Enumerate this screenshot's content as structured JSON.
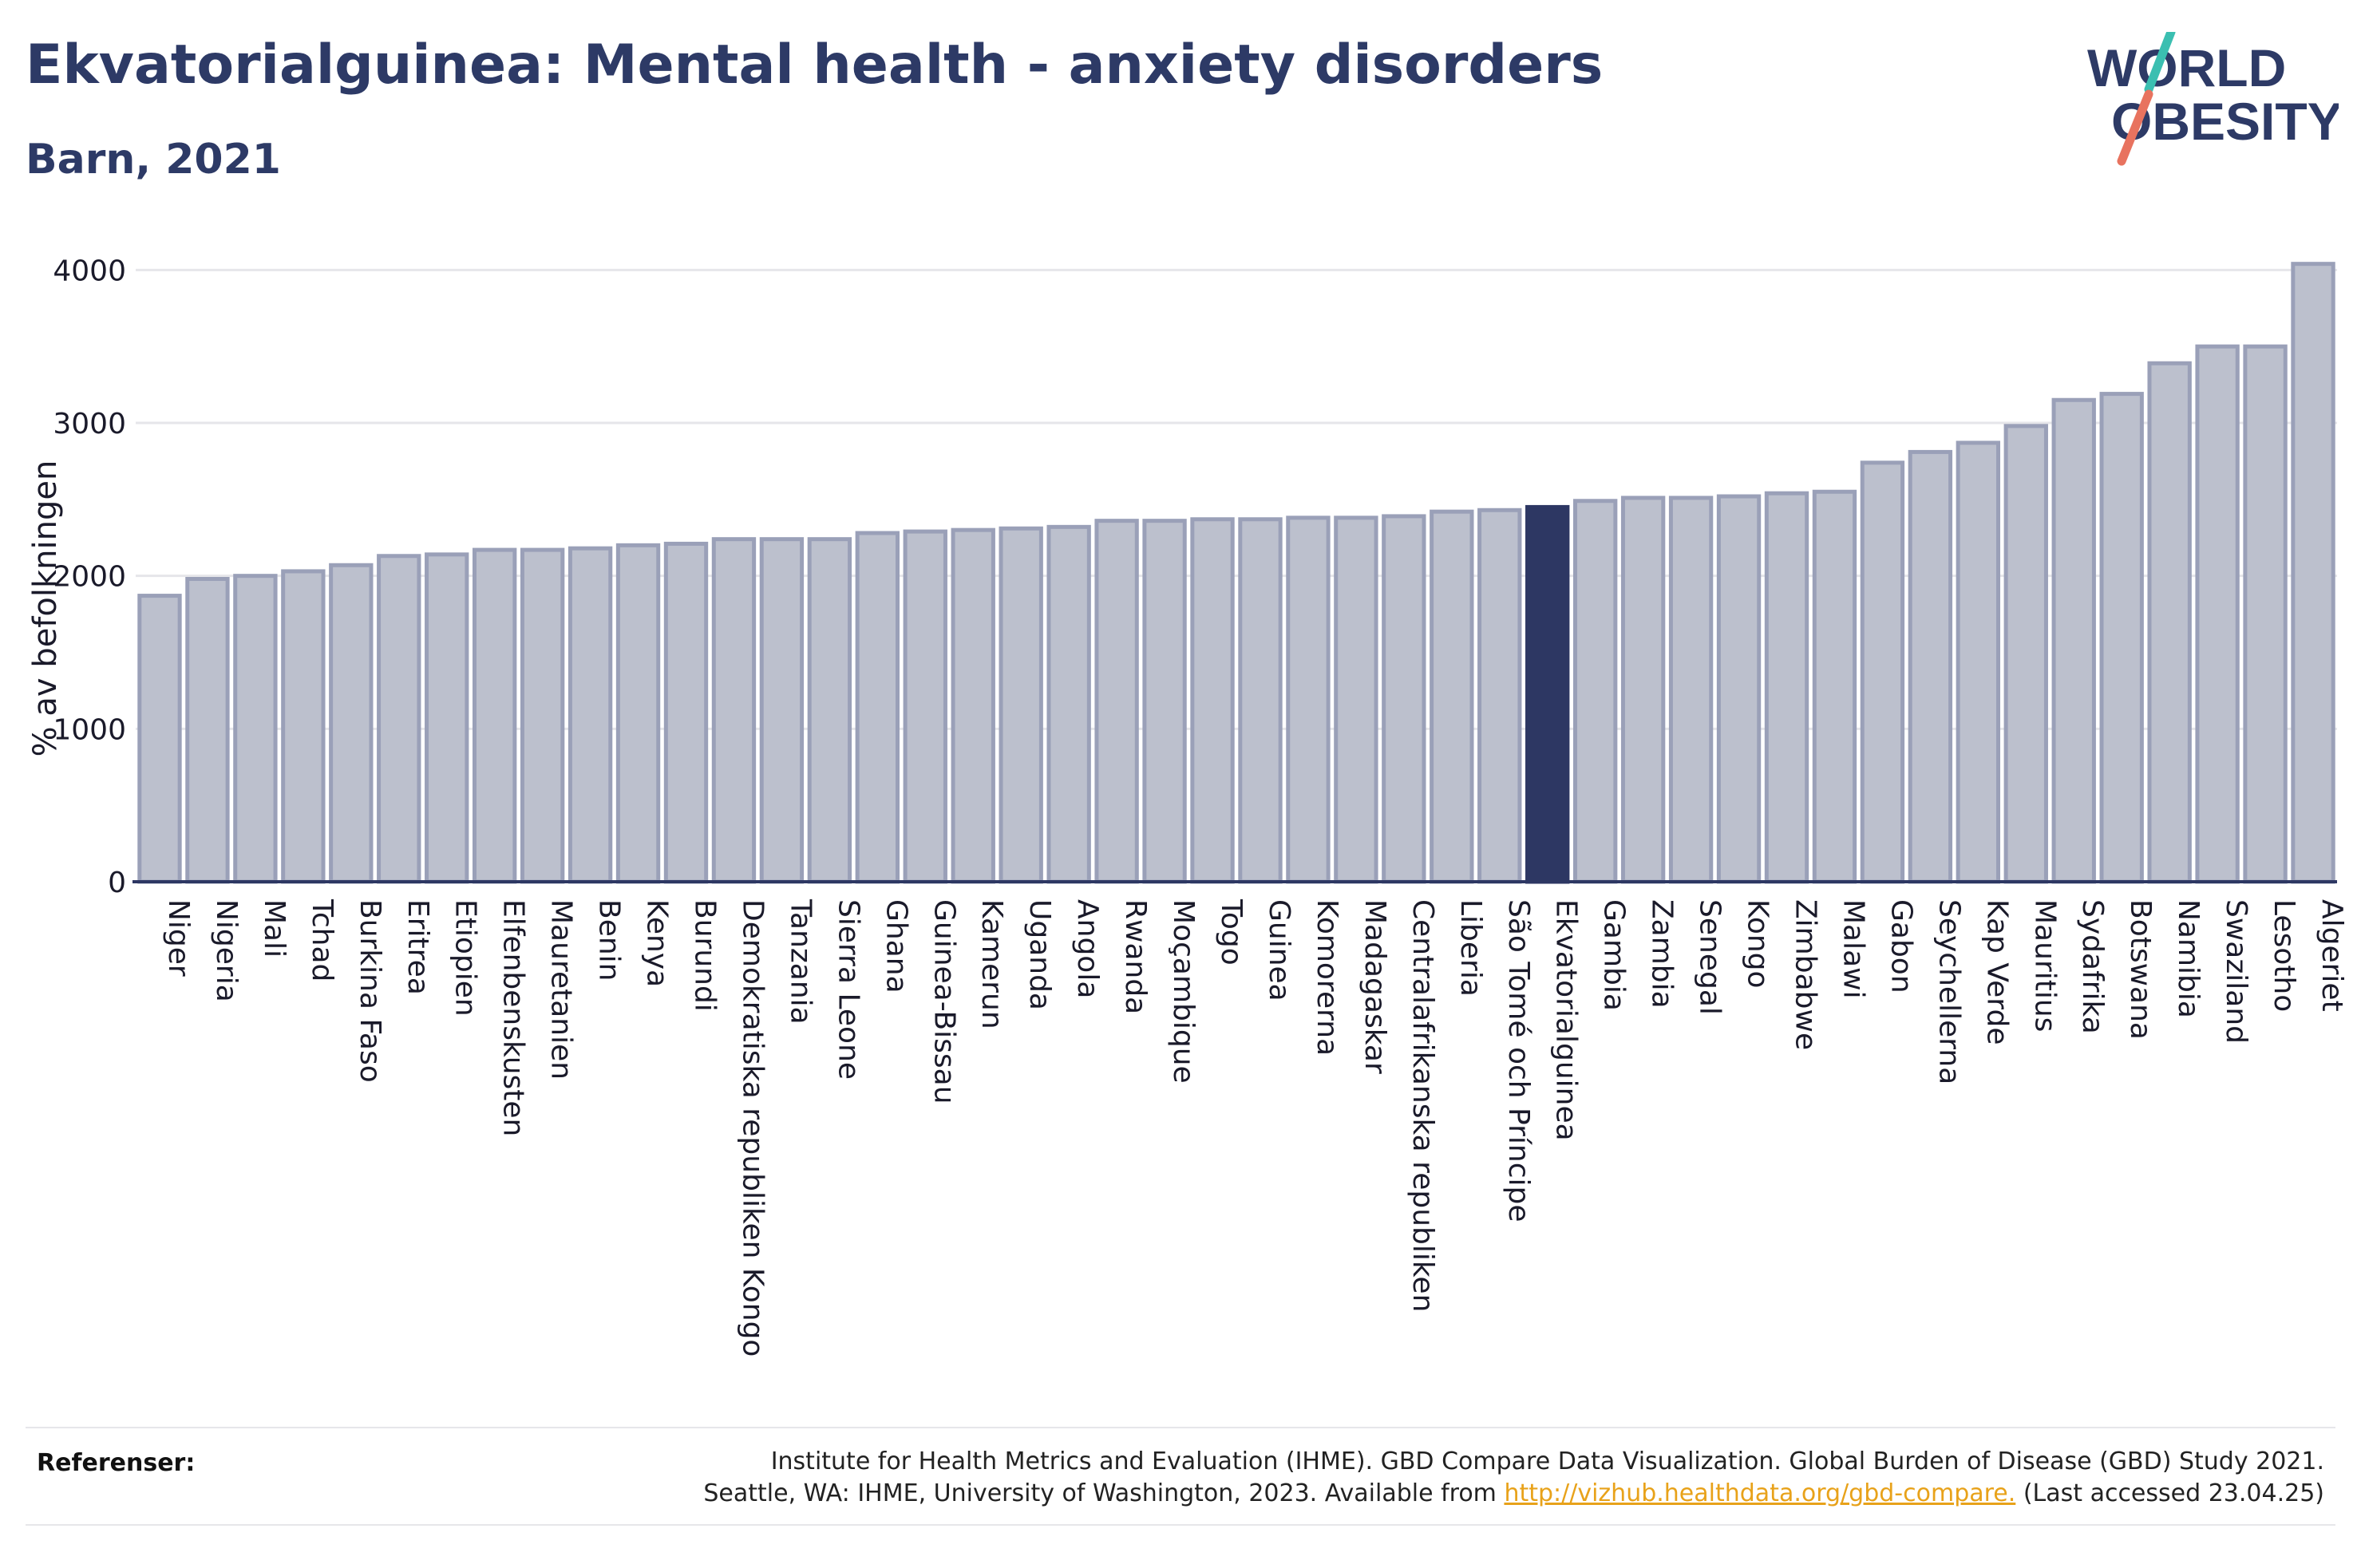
{
  "header": {
    "title": "Ekvatorialguinea: Mental health - anxiety disorders",
    "subtitle": "Barn, 2021"
  },
  "logo": {
    "line1": "WORLD",
    "line2": "OBESITY",
    "slash_top_color": "#3bbfb1",
    "slash_bottom_color": "#e8735f",
    "text_color": "#2d3a66"
  },
  "chart_data": {
    "type": "bar",
    "ylabel": "% av befolkningen",
    "ylim": [
      0,
      4200
    ],
    "yticks": [
      0,
      1000,
      2000,
      3000,
      4000
    ],
    "grid": true,
    "highlight": "Ekvatorialguinea",
    "colors": {
      "bar": "#bcc0cd",
      "bar_border": "#9aa0b8",
      "highlight": "#2d3763",
      "axis": "#2d3763",
      "grid": "#e6e6ea"
    },
    "categories": [
      "Niger",
      "Nigeria",
      "Mali",
      "Tchad",
      "Burkina Faso",
      "Eritrea",
      "Etiopien",
      "Elfenbenskusten",
      "Mauretanien",
      "Benin",
      "Kenya",
      "Burundi",
      "Demokratiska republiken Kongo",
      "Tanzania",
      "Sierra Leone",
      "Ghana",
      "Guinea-Bissau",
      "Kamerun",
      "Uganda",
      "Angola",
      "Rwanda",
      "Moçambique",
      "Togo",
      "Guinea",
      "Komorerna",
      "Madagaskar",
      "Centralafrikanska republiken",
      "Liberia",
      "São Tomé och Príncipe",
      "Ekvatorialguinea",
      "Gambia",
      "Zambia",
      "Senegal",
      "Kongo",
      "Zimbabwe",
      "Malawi",
      "Gabon",
      "Seychellerna",
      "Kap Verde",
      "Mauritius",
      "Sydafrika",
      "Botswana",
      "Namibia",
      "Swaziland",
      "Lesotho",
      "Algeriet"
    ],
    "values": [
      1870,
      1980,
      2000,
      2030,
      2070,
      2130,
      2140,
      2170,
      2170,
      2180,
      2200,
      2210,
      2240,
      2240,
      2240,
      2280,
      2290,
      2300,
      2310,
      2320,
      2360,
      2360,
      2370,
      2370,
      2380,
      2380,
      2390,
      2420,
      2430,
      2450,
      2490,
      2510,
      2510,
      2520,
      2540,
      2550,
      2740,
      2810,
      2870,
      2980,
      3150,
      3190,
      3390,
      3500,
      3500,
      4040
    ]
  },
  "references": {
    "label": "Referenser:",
    "line1": "Institute for Health Metrics and Evaluation (IHME). GBD Compare Data Visualization. Global Burden of Disease (GBD) Study 2021.",
    "line2_before": "Seattle, WA: IHME, University of Washington, 2023. Available from ",
    "link": "http://vizhub.healthdata.org/gbd-compare.",
    "line2_after": " (Last accessed 23.04.25)"
  }
}
